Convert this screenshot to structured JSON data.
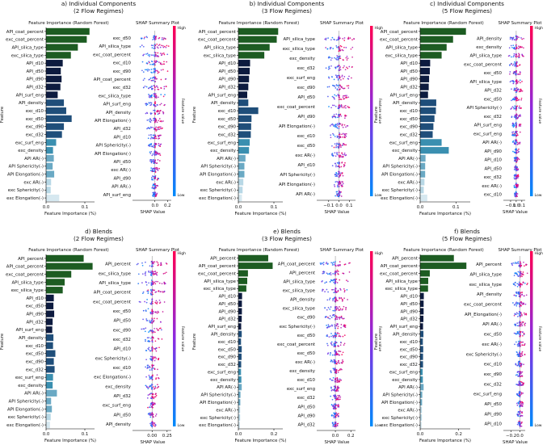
{
  "figure": {
    "cb_high": "High",
    "cb_low": "Low",
    "cb_label": "Feature value",
    "colors": {
      "dark_green": "#1d5c22",
      "dark_navy": "#0d1b3f",
      "navy": "#1f4e7a",
      "teal": "#3a8fb0",
      "light_blue": "#b8d8e6",
      "shap_high": "#ff0052",
      "shap_low": "#008bfb",
      "shap_mid": "#8a2be2"
    }
  },
  "chart_data": [
    {
      "type": "bar",
      "panel_title": "a) Individual Components",
      "panel_subtitle": "(2 Flow Regimes)",
      "title": "Feature Importance (Random Forest)",
      "xlabel": "Feature Importance (%)",
      "ylabel": "Feature",
      "xticks": [
        "0.0",
        "0.1"
      ],
      "xlim": [
        0,
        0.125
      ],
      "categories": [
        "API_coat_percent",
        "exc_coat_percent",
        "API_silica_type",
        "exc_silica_type",
        "API_d10",
        "API_d50",
        "API_d90",
        "API_d32",
        "API_surf_eng",
        "API_density",
        "exc_d10",
        "exc_d50",
        "exc_d90",
        "exc_d32",
        "exc_surf_eng",
        "exc_density",
        "API AR(-)",
        "API Sphericity(-)",
        "API Elongation(-)",
        "exc AR(-)",
        "exc Sphericity(-)",
        "exc Elongation(-)"
      ],
      "values": [
        0.112,
        0.105,
        0.082,
        0.064,
        0.043,
        0.038,
        0.04,
        0.037,
        0.03,
        0.046,
        0.052,
        0.066,
        0.046,
        0.041,
        0.026,
        0.018,
        0.02,
        0.017,
        0.021,
        0.013,
        0.012,
        0.034
      ],
      "colors": [
        "#1d5c22",
        "#1d5c22",
        "#1d5c22",
        "#1d5c22",
        "#0d1b3f",
        "#0d1b3f",
        "#0d1b3f",
        "#0d1b3f",
        "#0d1b3f",
        "#1f4e7a",
        "#1f4e7a",
        "#1f4e7a",
        "#1f4e7a",
        "#1f4e7a",
        "#3a8fb0",
        "#3a8fb0",
        "#6aa9c4",
        "#6aa9c4",
        "#6aa9c4",
        "#b8d8e6",
        "#b8d8e6",
        "#d6e8f0"
      ]
    },
    {
      "type": "scatter",
      "title": "SHAP Summary Plot",
      "xlabel": "SHAP Value",
      "xticks": [
        "0.0",
        "0.2"
      ],
      "tick_values": [
        0.0,
        0.2
      ],
      "xlim": [
        -0.33,
        0.26
      ],
      "features": [
        "exc_d50",
        "API_silica_type",
        "exc_coat_percent",
        "exc_d10",
        "exc_d90",
        "API_coat_percent",
        "exc_d32",
        "exc_silica_type",
        "API_surf_eng",
        "API_density",
        "API Elongation(-)",
        "API_d32",
        "API_d10",
        "API Sphericity(-)",
        "API Elongation(-)",
        "API_d50",
        "exc AR(-)",
        "API_d90",
        "API AR(-)",
        "API_surf_eng"
      ]
    },
    {
      "type": "bar",
      "panel_title": "b) Individual Components",
      "panel_subtitle": "(3 Flow Regimes)",
      "title": "Feature Importance (Random Forest)",
      "xlabel": "Feature Importance (%)",
      "ylabel": "Feature",
      "xticks": [
        "0.0",
        "0.1"
      ],
      "xlim": [
        0,
        0.125
      ],
      "categories": [
        "API_coat_percent",
        "exc_coat_percent",
        "API_silica_type",
        "exc_silica_type",
        "API_d10",
        "API_d50",
        "API_d90",
        "API_d32",
        "API_surf_eng",
        "API_density",
        "exc_d10",
        "exc_d50",
        "exc_d90",
        "exc_d32",
        "exc_surf_eng",
        "exc_density",
        "API AR(-)",
        "API Sphericity(-)",
        "API Elongation(-)",
        "exc AR(-)",
        "exc Sphericity(-)",
        "exc Elongation(-)"
      ],
      "values": [
        0.112,
        0.108,
        0.088,
        0.073,
        0.033,
        0.032,
        0.03,
        0.028,
        0.025,
        0.028,
        0.056,
        0.037,
        0.036,
        0.035,
        0.032,
        0.03,
        0.02,
        0.017,
        0.017,
        0.014,
        0.012,
        0.01
      ],
      "colors": [
        "#1d5c22",
        "#1d5c22",
        "#1d5c22",
        "#1d5c22",
        "#0d1b3f",
        "#0d1b3f",
        "#0d1b3f",
        "#0d1b3f",
        "#0d1b3f",
        "#1f4e7a",
        "#1f4e7a",
        "#1f4e7a",
        "#1f4e7a",
        "#1f4e7a",
        "#3a8fb0",
        "#3a8fb0",
        "#6aa9c4",
        "#6aa9c4",
        "#6aa9c4",
        "#b8d8e6",
        "#b8d8e6",
        "#d6e8f0"
      ]
    },
    {
      "type": "scatter",
      "title": "SHAP Summary Plot",
      "xlabel": "SHAP Value",
      "xticks": [
        "−0.1",
        "0.0",
        "0.1"
      ],
      "tick_values": [
        -0.1,
        0.0,
        0.1
      ],
      "xlim": [
        -0.2,
        0.16
      ],
      "features": [
        "API_silica_type",
        "exc_silica_type",
        "exc_density",
        "exc_d32",
        "exc_surf_eng",
        "exc_d90",
        "API_d50",
        "exc_coat_percent",
        "API_d90",
        "API Elongation(-)",
        "exc_d10",
        "exc_d50",
        "exc AR(-)",
        "API_d10",
        "API Sphericity(-)",
        "API Elongation(-)",
        "API AR(-)"
      ]
    },
    {
      "type": "bar",
      "panel_title": "c) Individual Components",
      "panel_subtitle": "(5 Flow Regimes)",
      "title": "Feature Importance (Random Forest)",
      "xlabel": "Feature Importance (%)",
      "ylabel": "Feature",
      "xticks": [
        "0.0",
        "0.1"
      ],
      "xlim": [
        0,
        0.14
      ],
      "categories": [
        "API_coat_percent",
        "exc_coat_percent",
        "API_silica_type",
        "exc_silica_type",
        "API_d10",
        "API_d50",
        "API_d90",
        "API_d32",
        "API_surf_eng",
        "API_density",
        "exc_d10",
        "exc_d50",
        "exc_d90",
        "exc_d32",
        "exc_surf_eng",
        "exc_density",
        "API AR(-)",
        "API Sphericity(-)",
        "API Elongation(-)",
        "exc AR(-)",
        "exc Sphericity(-)",
        "exc Elongation(-)"
      ],
      "values": [
        0.128,
        0.092,
        0.074,
        0.06,
        0.028,
        0.027,
        0.025,
        0.024,
        0.022,
        0.045,
        0.044,
        0.04,
        0.037,
        0.035,
        0.06,
        0.08,
        0.015,
        0.014,
        0.014,
        0.012,
        0.01,
        0.02
      ],
      "colors": [
        "#1d5c22",
        "#1d5c22",
        "#1d5c22",
        "#1d5c22",
        "#0d1b3f",
        "#0d1b3f",
        "#0d1b3f",
        "#0d1b3f",
        "#0d1b3f",
        "#1f4e7a",
        "#1f4e7a",
        "#1f4e7a",
        "#1f4e7a",
        "#1f4e7a",
        "#3a8fb0",
        "#3a8fb0",
        "#6aa9c4",
        "#6aa9c4",
        "#6aa9c4",
        "#b8d8e6",
        "#b8d8e6",
        "#d6e8f0"
      ]
    },
    {
      "type": "scatter",
      "title": "SHAP Summary Plot",
      "xlabel": "SHAP Value",
      "xticks": [
        "−0.1",
        "0.0",
        "0.1"
      ],
      "tick_values": [
        -0.1,
        0.0,
        0.1
      ],
      "xlim": [
        -0.2,
        0.16
      ],
      "features": [
        "API_density",
        "exc_density",
        "API_silica_type",
        "exc_coat_percent",
        "exc_d50",
        "API_silica_type",
        "API_d32",
        "exc_d50",
        "API Sphericity(-)",
        "exc_d32",
        "API_surf_eng",
        "exc_surf_eng",
        "API AR(-)",
        "API_d90",
        "API_d10",
        "API_d50",
        "exc_d32",
        "exc AR(-)",
        "exc_d10"
      ]
    },
    {
      "type": "bar",
      "panel_title": "d) Blends",
      "panel_subtitle": "(2 Flow Regimes)",
      "title": "Feature Importance (Random Forest)",
      "xlabel": "Feature Importance (%)",
      "ylabel": "Feature",
      "xticks": [
        "0.0",
        "0.1"
      ],
      "xlim": [
        0,
        0.125
      ],
      "categories": [
        "API_percent",
        "API_coat_percent",
        "exc_coat_percent",
        "API_silica_type",
        "exc_silica_type",
        "API_d10",
        "exc_d50",
        "API_d90",
        "API_d32",
        "API_surf_eng",
        "API_density",
        "exc_d10",
        "exc_d50",
        "exc_d90",
        "exc_d32",
        "exc_surf_eng",
        "exc_density",
        "API AR(-)",
        "API Sphericity(-)",
        "API Elongation(-)",
        "exc Sphericity(-)",
        "exc Elongation(-)"
      ],
      "values": [
        0.097,
        0.12,
        0.065,
        0.048,
        0.043,
        0.02,
        0.019,
        0.021,
        0.017,
        0.016,
        0.019,
        0.018,
        0.024,
        0.02,
        0.022,
        0.018,
        0.017,
        0.028,
        0.013,
        0.015,
        0.012,
        0.01
      ],
      "colors": [
        "#1d5c22",
        "#1d5c22",
        "#1d5c22",
        "#1d5c22",
        "#1d5c22",
        "#0d1b3f",
        "#0d1b3f",
        "#0d1b3f",
        "#0d1b3f",
        "#0d1b3f",
        "#1f4e7a",
        "#1f4e7a",
        "#1f4e7a",
        "#1f4e7a",
        "#1f4e7a",
        "#3a8fb0",
        "#3a8fb0",
        "#6aa9c4",
        "#6aa9c4",
        "#6aa9c4",
        "#b8d8e6",
        "#d6e8f0"
      ]
    },
    {
      "type": "scatter",
      "title": "SHAP Summary Plot",
      "xlabel": "SHAP Value",
      "xticks": [
        "0.00",
        "0.25"
      ],
      "tick_values": [
        0.0,
        0.25
      ],
      "xlim": [
        -0.3,
        0.32
      ],
      "features": [
        "API_percent",
        "exc_silica_type",
        "API_silica_type",
        "API_coat_percent",
        "exc_coat_percent",
        "exc_d50",
        "API_d50",
        "exc_d90",
        "exc_d32",
        "API_d10",
        "exc Sphericity(-)",
        "exc_d10",
        "exc Elongation(-)",
        "exc_density",
        "API_d32",
        "exc_surf_eng",
        "API_d50",
        "API_density"
      ]
    },
    {
      "type": "bar",
      "panel_title": "e) Blends",
      "panel_subtitle": "(3 Flow Regimes)",
      "title": "Feature Importance (Random Forest)",
      "xlabel": "Feature Importance (%)",
      "ylabel": "Feature",
      "xticks": [
        "0.0",
        "0.2"
      ],
      "xlim": [
        0,
        0.25
      ],
      "categories": [
        "API_percent",
        "API_coat_percent",
        "exc_coat_percent",
        "API_silica_type",
        "exc_silica_type",
        "API_d10",
        "API_d50",
        "API_d90",
        "API_d32",
        "API_surf_eng",
        "API_density",
        "exc_d10",
        "exc_d50",
        "exc_d90",
        "exc_d32",
        "exc_surf_eng",
        "exc_density",
        "API AR(-)",
        "API Sphericity(-)",
        "API Elongation(-)",
        "exc AR(-)",
        "exc Sphericity(-)",
        "exc Elongation(-)"
      ],
      "values": [
        0.168,
        0.193,
        0.054,
        0.05,
        0.045,
        0.021,
        0.02,
        0.02,
        0.019,
        0.016,
        0.019,
        0.015,
        0.019,
        0.018,
        0.016,
        0.015,
        0.017,
        0.019,
        0.012,
        0.011,
        0.01,
        0.01,
        0.009
      ],
      "colors": [
        "#1d5c22",
        "#1d5c22",
        "#1d5c22",
        "#1d5c22",
        "#1d5c22",
        "#0d1b3f",
        "#0d1b3f",
        "#0d1b3f",
        "#0d1b3f",
        "#0d1b3f",
        "#1f4e7a",
        "#1f4e7a",
        "#1f4e7a",
        "#1f4e7a",
        "#1f4e7a",
        "#3a8fb0",
        "#3a8fb0",
        "#6aa9c4",
        "#6aa9c4",
        "#6aa9c4",
        "#b8d8e6",
        "#b8d8e6",
        "#d6e8f0"
      ]
    },
    {
      "type": "scatter",
      "title": "SHAP Summary Plot",
      "xlabel": "SHAP Value",
      "xticks": [
        "0.0",
        "0.2"
      ],
      "tick_values": [
        0.0,
        0.2
      ],
      "xlim": [
        -0.22,
        0.26
      ],
      "features": [
        "API_coat_percent",
        "API_percent",
        "API_silica_type",
        "exc_silica_type",
        "API_density",
        "exc_silica_type",
        "exc_d90",
        "exc Sphericity(-)",
        "exc_d50",
        "exc_coat_percent",
        "exc_d50",
        "exc AR(-)",
        "exc_density",
        "exc_d10",
        "exc_surf_eng",
        "exc_d32",
        "API_d50",
        "API_d90",
        "API_d32"
      ]
    },
    {
      "type": "bar",
      "panel_title": "f) Blends",
      "panel_subtitle": "(5 Flow Regimes)",
      "title": "Feature Importance (Random Forest)",
      "xlabel": "Feature Importance (%)",
      "ylabel": "Feature",
      "xticks": [
        "0.0",
        "0.2"
      ],
      "xlim": [
        0,
        0.26
      ],
      "categories": [
        "API_percent",
        "API_coat_percent",
        "exc_coat_percent",
        "API_silica_type",
        "exc_silica_type",
        "API_d10",
        "API_d50",
        "API_d90",
        "API_d32",
        "API_surf_eng",
        "API_density",
        "exc_d10",
        "exc_d50",
        "exc_d90",
        "exc_d32",
        "exc_surf_eng",
        "exc_density",
        "API AR(-)",
        "API Sphericity(-)",
        "API Elongation(-)",
        "exc AR(-)",
        "exc Sphericity(-)",
        "exc Elongation(-)"
      ],
      "values": [
        0.175,
        0.24,
        0.05,
        0.042,
        0.041,
        0.019,
        0.018,
        0.018,
        0.017,
        0.015,
        0.017,
        0.014,
        0.016,
        0.015,
        0.015,
        0.013,
        0.014,
        0.018,
        0.011,
        0.01,
        0.009,
        0.009,
        0.008
      ],
      "colors": [
        "#1d5c22",
        "#1d5c22",
        "#1d5c22",
        "#1d5c22",
        "#1d5c22",
        "#0d1b3f",
        "#0d1b3f",
        "#0d1b3f",
        "#0d1b3f",
        "#0d1b3f",
        "#1f4e7a",
        "#1f4e7a",
        "#1f4e7a",
        "#1f4e7a",
        "#1f4e7a",
        "#3a8fb0",
        "#3a8fb0",
        "#6aa9c4",
        "#6aa9c4",
        "#6aa9c4",
        "#b8d8e6",
        "#b8d8e6",
        "#d6e8f0"
      ]
    },
    {
      "type": "scatter",
      "title": "SHAP Summary Plot",
      "xlabel": "SHAP Value",
      "xticks": [
        "−0.2",
        "0.0"
      ],
      "tick_values": [
        -0.2,
        0.0
      ],
      "xlim": [
        -0.34,
        0.12
      ],
      "features": [
        "API_percent",
        "API_silica_type",
        "exc_silica_type",
        "API_density",
        "exc_coat_percent",
        "API_Elongation(-)",
        "API AR(-)",
        "exc_d50",
        "exc AR(-)",
        "exc Sphericity(-)",
        "exc_d10",
        "exc_d90",
        "exc_d32",
        "exc_surf_eng",
        "API_d50",
        "API_d90",
        "API_d10"
      ]
    }
  ]
}
